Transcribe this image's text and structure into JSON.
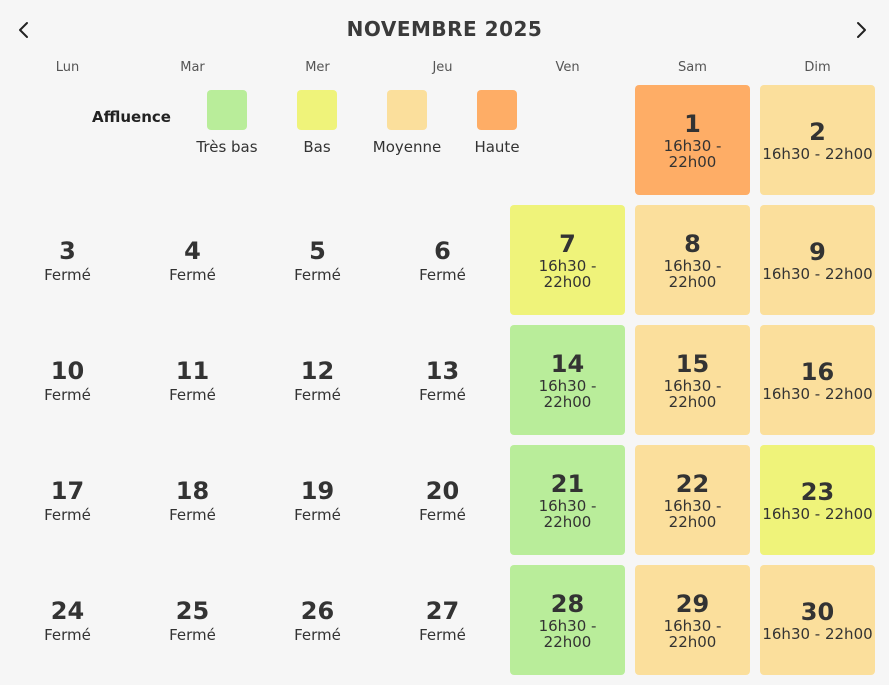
{
  "header": {
    "title": "NOVEMBRE 2025",
    "prev_icon": "chevron-left-icon",
    "next_icon": "chevron-right-icon"
  },
  "weekdays": [
    "Lun",
    "Mar",
    "Mer",
    "Jeu",
    "Ven",
    "Sam",
    "Dim"
  ],
  "legend": {
    "label": "Affluence",
    "items": [
      {
        "label": "Très bas",
        "color": "#b9ed9a"
      },
      {
        "label": "Bas",
        "color": "#eff37a"
      },
      {
        "label": "Moyenne",
        "color": "#fbdf9c"
      },
      {
        "label": "Haute",
        "color": "#fead66"
      }
    ]
  },
  "colors": {
    "very_low": "#b9ed9a",
    "low": "#eff37a",
    "medium": "#fbdf9c",
    "high": "#fead66"
  },
  "days": [
    {
      "day": "1",
      "info": "16h30 - 22h00",
      "level": "high",
      "week": 0,
      "weekday": 5
    },
    {
      "day": "2",
      "info": "16h30 - 22h00",
      "level": "medium",
      "week": 0,
      "weekday": 6
    },
    {
      "day": "3",
      "info": "Fermé",
      "level": "closed",
      "week": 1,
      "weekday": 0
    },
    {
      "day": "4",
      "info": "Fermé",
      "level": "closed",
      "week": 1,
      "weekday": 1
    },
    {
      "day": "5",
      "info": "Fermé",
      "level": "closed",
      "week": 1,
      "weekday": 2
    },
    {
      "day": "6",
      "info": "Fermé",
      "level": "closed",
      "week": 1,
      "weekday": 3
    },
    {
      "day": "7",
      "info": "16h30 - 22h00",
      "level": "low",
      "week": 1,
      "weekday": 4
    },
    {
      "day": "8",
      "info": "16h30 - 22h00",
      "level": "medium",
      "week": 1,
      "weekday": 5
    },
    {
      "day": "9",
      "info": "16h30 - 22h00",
      "level": "medium",
      "week": 1,
      "weekday": 6
    },
    {
      "day": "10",
      "info": "Fermé",
      "level": "closed",
      "week": 2,
      "weekday": 0
    },
    {
      "day": "11",
      "info": "Fermé",
      "level": "closed",
      "week": 2,
      "weekday": 1
    },
    {
      "day": "12",
      "info": "Fermé",
      "level": "closed",
      "week": 2,
      "weekday": 2
    },
    {
      "day": "13",
      "info": "Fermé",
      "level": "closed",
      "week": 2,
      "weekday": 3
    },
    {
      "day": "14",
      "info": "16h30 - 22h00",
      "level": "very_low",
      "week": 2,
      "weekday": 4
    },
    {
      "day": "15",
      "info": "16h30 - 22h00",
      "level": "medium",
      "week": 2,
      "weekday": 5
    },
    {
      "day": "16",
      "info": "16h30 - 22h00",
      "level": "medium",
      "week": 2,
      "weekday": 6
    },
    {
      "day": "17",
      "info": "Fermé",
      "level": "closed",
      "week": 3,
      "weekday": 0
    },
    {
      "day": "18",
      "info": "Fermé",
      "level": "closed",
      "week": 3,
      "weekday": 1
    },
    {
      "day": "19",
      "info": "Fermé",
      "level": "closed",
      "week": 3,
      "weekday": 2
    },
    {
      "day": "20",
      "info": "Fermé",
      "level": "closed",
      "week": 3,
      "weekday": 3
    },
    {
      "day": "21",
      "info": "16h30 - 22h00",
      "level": "very_low",
      "week": 3,
      "weekday": 4
    },
    {
      "day": "22",
      "info": "16h30 - 22h00",
      "level": "medium",
      "week": 3,
      "weekday": 5
    },
    {
      "day": "23",
      "info": "16h30 - 22h00",
      "level": "low",
      "week": 3,
      "weekday": 6
    },
    {
      "day": "24",
      "info": "Fermé",
      "level": "closed",
      "week": 4,
      "weekday": 0
    },
    {
      "day": "25",
      "info": "Fermé",
      "level": "closed",
      "week": 4,
      "weekday": 1
    },
    {
      "day": "26",
      "info": "Fermé",
      "level": "closed",
      "week": 4,
      "weekday": 2
    },
    {
      "day": "27",
      "info": "Fermé",
      "level": "closed",
      "week": 4,
      "weekday": 3
    },
    {
      "day": "28",
      "info": "16h30 - 22h00",
      "level": "very_low",
      "week": 4,
      "weekday": 4
    },
    {
      "day": "29",
      "info": "16h30 - 22h00",
      "level": "medium",
      "week": 4,
      "weekday": 5
    },
    {
      "day": "30",
      "info": "16h30 - 22h00",
      "level": "medium",
      "week": 4,
      "weekday": 6
    }
  ]
}
